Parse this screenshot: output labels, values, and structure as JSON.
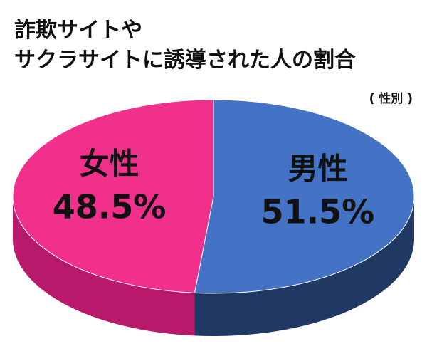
{
  "chart_data": {
    "type": "pie",
    "title_lines": [
      "詐欺サイトや",
      "サクラサイトに誘導された人の割合"
    ],
    "subtitle": "( 性別 )",
    "unit": "%",
    "slices": [
      {
        "label": "男性",
        "value": 51.5,
        "value_text": "51.5%",
        "color": "#4472C4",
        "side_color": "#1F3864"
      },
      {
        "label": "女性",
        "value": 48.5,
        "value_text": "48.5%",
        "color": "#F0308A",
        "side_color": "#B8196A"
      }
    ]
  }
}
